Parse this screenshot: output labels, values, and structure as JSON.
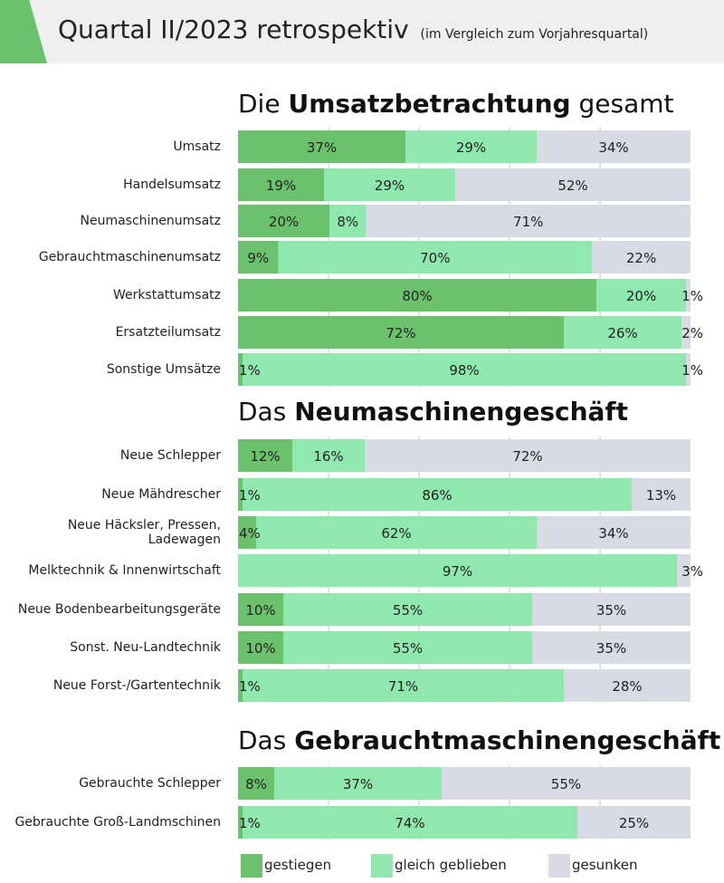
{
  "header": {
    "title": "Quartal II/2023 retrospektiv",
    "note": "(im Vergleich zum Vorjahresquartal)"
  },
  "colors": {
    "gestiegen": "#6cc26c",
    "gleich": "#8fe8ad",
    "gesunken": "#d8dbe3"
  },
  "legend": [
    {
      "key": "gestiegen",
      "label": "gestiegen"
    },
    {
      "key": "gleich",
      "label": "gleich geblieben"
    },
    {
      "key": "gesunken",
      "label": "gesunken"
    }
  ],
  "chart_data": [
    {
      "type": "bar",
      "stacked": true,
      "orientation": "horizontal",
      "title_prefix": "Die",
      "title_bold": "Umsatzbetrachtung",
      "title_suffix": "gesamt",
      "categories": [
        "Umsatz",
        "Handelsumsatz",
        "Neumaschinenumsatz",
        "Gebrauchtmaschinenumsatz",
        "Werkstattumsatz",
        "Ersatzteilumsatz",
        "Sonstige Umsätze"
      ],
      "series": [
        {
          "name": "gestiegen",
          "values": [
            37,
            19,
            20,
            9,
            80,
            72,
            1
          ]
        },
        {
          "name": "gleich geblieben",
          "values": [
            29,
            29,
            8,
            70,
            20,
            26,
            98
          ]
        },
        {
          "name": "gesunken",
          "values": [
            34,
            52,
            71,
            22,
            1,
            2,
            1
          ]
        }
      ],
      "xlim": [
        0,
        100
      ]
    },
    {
      "type": "bar",
      "stacked": true,
      "orientation": "horizontal",
      "title_prefix": "Das",
      "title_bold": "Neumaschinengeschäft",
      "title_suffix": "",
      "categories": [
        "Neue Schlepper",
        "Neue Mähdrescher",
        "Neue Häcksler, Pressen, Ladewagen",
        "Melktechnik & Innenwirtschaft",
        "Neue Bodenbearbeitungsgeräte",
        "Sonst. Neu-Landtechnik",
        "Neue Forst-/Gartentechnik"
      ],
      "series": [
        {
          "name": "gestiegen",
          "values": [
            12,
            1,
            4,
            0,
            10,
            10,
            1
          ]
        },
        {
          "name": "gleich geblieben",
          "values": [
            16,
            86,
            62,
            97,
            55,
            55,
            71
          ]
        },
        {
          "name": "gesunken",
          "values": [
            72,
            13,
            34,
            3,
            35,
            35,
            28
          ]
        }
      ],
      "labels": [
        [
          "12%",
          "16%",
          "72%"
        ],
        [
          "1%",
          "86%",
          "13%"
        ],
        [
          "4%",
          "62%",
          "34%"
        ],
        [
          "",
          "97%",
          "3%"
        ],
        [
          "10%",
          "55%",
          "35%"
        ],
        [
          "10%",
          "55%",
          "35%"
        ],
        [
          "1%",
          "71%",
          "28%"
        ]
      ],
      "xlim": [
        0,
        100
      ]
    },
    {
      "type": "bar",
      "stacked": true,
      "orientation": "horizontal",
      "title_prefix": "Das",
      "title_bold": "Gebrauchtmaschinengeschäft",
      "title_suffix": "",
      "categories": [
        "Gebrauchte Schlepper",
        "Gebrauchte Groß-Landmschinen"
      ],
      "series": [
        {
          "name": "gestiegen",
          "values": [
            8,
            1
          ]
        },
        {
          "name": "gleich geblieben",
          "values": [
            37,
            74
          ]
        },
        {
          "name": "gesunken",
          "values": [
            55,
            25
          ]
        }
      ],
      "xlim": [
        0,
        100
      ]
    }
  ]
}
